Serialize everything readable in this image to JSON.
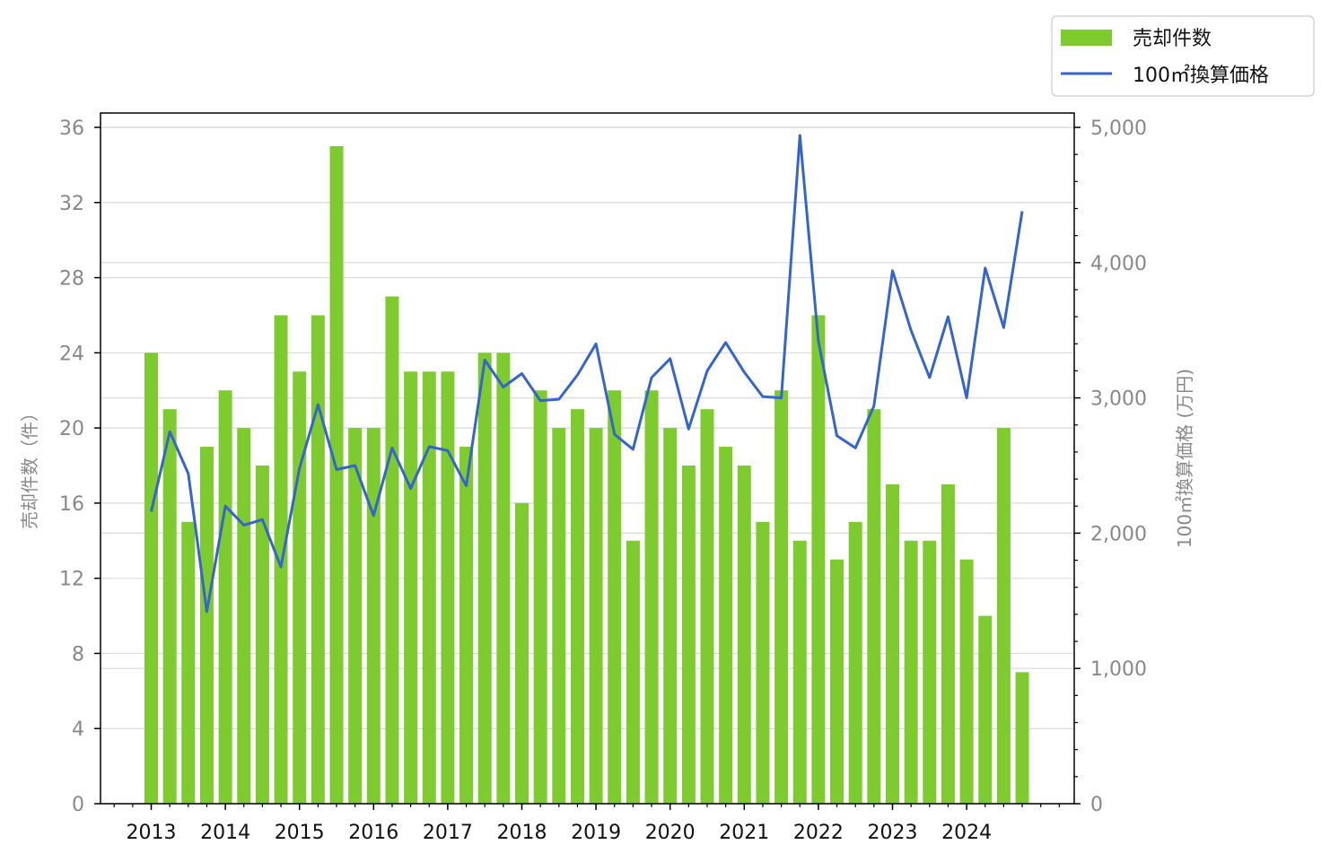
{
  "chart_data": {
    "type": "bar+line",
    "colors": {
      "bar": "#7ecb2f",
      "line": "#3565c8",
      "grid": "#d9d9d9",
      "tick_text": "#888888"
    },
    "x_tick_labels": [
      "2013",
      "2014",
      "2015",
      "2016",
      "2017",
      "2018",
      "2019",
      "2020",
      "2021",
      "2022",
      "2023",
      "2024"
    ],
    "y_left": {
      "label": "売却件数（件）",
      "ylim": [
        0,
        36
      ],
      "ticks": [
        0,
        4,
        8,
        12,
        16,
        20,
        24,
        28,
        32,
        36
      ],
      "tick_labels": [
        "0",
        "4",
        "8",
        "12",
        "16",
        "20",
        "24",
        "28",
        "32",
        "36"
      ]
    },
    "y_right": {
      "label": "100㎡換算価格 (万円)",
      "ylim": [
        0,
        5000
      ],
      "ticks": [
        0,
        1000,
        2000,
        3000,
        4000,
        5000
      ],
      "tick_labels": [
        "0",
        "1,000",
        "2,000",
        "3,000",
        "4,000",
        "5,000"
      ]
    },
    "grid": "horizontal lines at right-axis ticks",
    "legend_position": "top-right, outside plot",
    "series": [
      {
        "name": "売却件数",
        "type": "bar",
        "axis": "left",
        "values": [
          24,
          21,
          15,
          19,
          22,
          20,
          18,
          26,
          23,
          26,
          35,
          20,
          20,
          27,
          23,
          23,
          23,
          19,
          24,
          24,
          16,
          22,
          20,
          21,
          20,
          22,
          14,
          22,
          20,
          18,
          21,
          19,
          18,
          15,
          22,
          14,
          26,
          13,
          15,
          21,
          17,
          14,
          14,
          17,
          13,
          10,
          20,
          7
        ]
      },
      {
        "name": "100㎡換算価格",
        "type": "line",
        "axis": "right",
        "values": [
          2160,
          2750,
          2440,
          1420,
          2200,
          2060,
          2100,
          1750,
          2480,
          2950,
          2470,
          2500,
          2130,
          2630,
          2330,
          2640,
          2610,
          2350,
          3280,
          3080,
          3180,
          2980,
          2990,
          3170,
          3400,
          2730,
          2620,
          3150,
          3290,
          2770,
          3200,
          3410,
          3190,
          3010,
          3000,
          4940,
          3420,
          2720,
          2630,
          2940,
          3940,
          3500,
          3150,
          3600,
          3000,
          3960,
          3520,
          4380
        ]
      }
    ]
  }
}
